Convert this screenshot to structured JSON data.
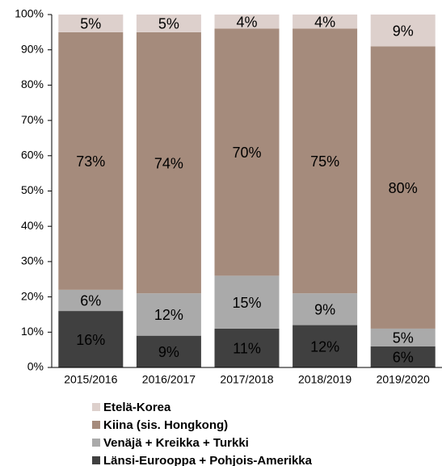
{
  "chart_data": {
    "type": "stacked_bar",
    "categories": [
      "2015/2016",
      "2016/2017",
      "2017/2018",
      "2018/2019",
      "2019/2020"
    ],
    "series": [
      {
        "name": "Länsi-Eurooppa + Pohjois-Amerikka",
        "color": "#404040",
        "values": [
          16,
          9,
          11,
          12,
          6
        ],
        "value_labels": [
          "16%",
          "9%",
          "11%",
          "12%",
          "6%"
        ]
      },
      {
        "name": "Venäjä + Kreikka + Turkki",
        "color": "#aaaaaa",
        "values": [
          6,
          12,
          15,
          9,
          5
        ],
        "value_labels": [
          "6%",
          "12%",
          "15%",
          "9%",
          "5%"
        ]
      },
      {
        "name": "Kiina (sis. Hongkong)",
        "color": "#a58b7c",
        "values": [
          73,
          74,
          70,
          75,
          80
        ],
        "value_labels": [
          "73%",
          "74%",
          "70%",
          "75%",
          "80%"
        ]
      },
      {
        "name": "Etelä-Korea",
        "color": "#ddd0cc",
        "values": [
          5,
          5,
          4,
          4,
          9
        ],
        "value_labels": [
          "5%",
          "5%",
          "4%",
          "4%",
          "9%"
        ]
      }
    ],
    "ylim": [
      0,
      100
    ],
    "yticks": [
      {
        "value": 0,
        "label": "0%"
      },
      {
        "value": 10,
        "label": "10%"
      },
      {
        "value": 20,
        "label": "20%"
      },
      {
        "value": 30,
        "label": "30%"
      },
      {
        "value": 40,
        "label": "40%"
      },
      {
        "value": 50,
        "label": "50%"
      },
      {
        "value": 60,
        "label": "60%"
      },
      {
        "value": 70,
        "label": "70%"
      },
      {
        "value": 80,
        "label": "80%"
      },
      {
        "value": 90,
        "label": "90%"
      },
      {
        "value": 100,
        "label": "100%"
      }
    ],
    "legend": "bottom"
  }
}
